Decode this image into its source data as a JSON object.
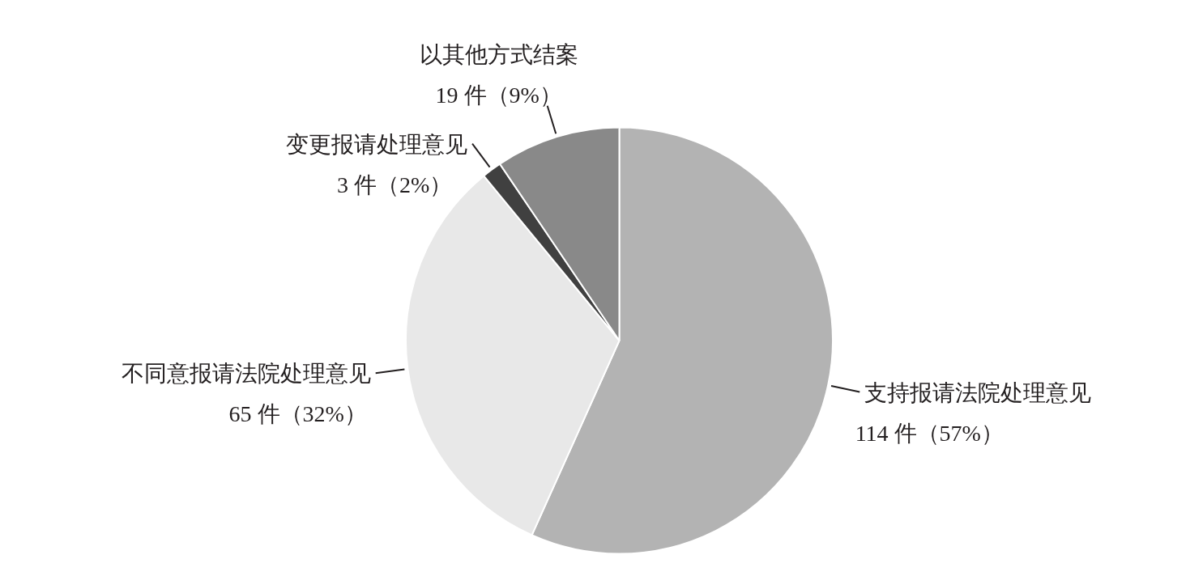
{
  "chart_data": {
    "type": "pie",
    "categories": [
      "支持报请法院处理意见",
      "不同意报请法院处理意见",
      "变更报请处理意见",
      "以其他方式结案"
    ],
    "values": [
      114,
      65,
      3,
      19
    ],
    "value_labels": [
      "114 件（57%）",
      "65 件（32%）",
      "3 件（2%）",
      "19 件（9%）"
    ],
    "colors": [
      "#b3b3b3",
      "#e8e8e8",
      "#404040",
      "#898989"
    ],
    "legend": false
  }
}
